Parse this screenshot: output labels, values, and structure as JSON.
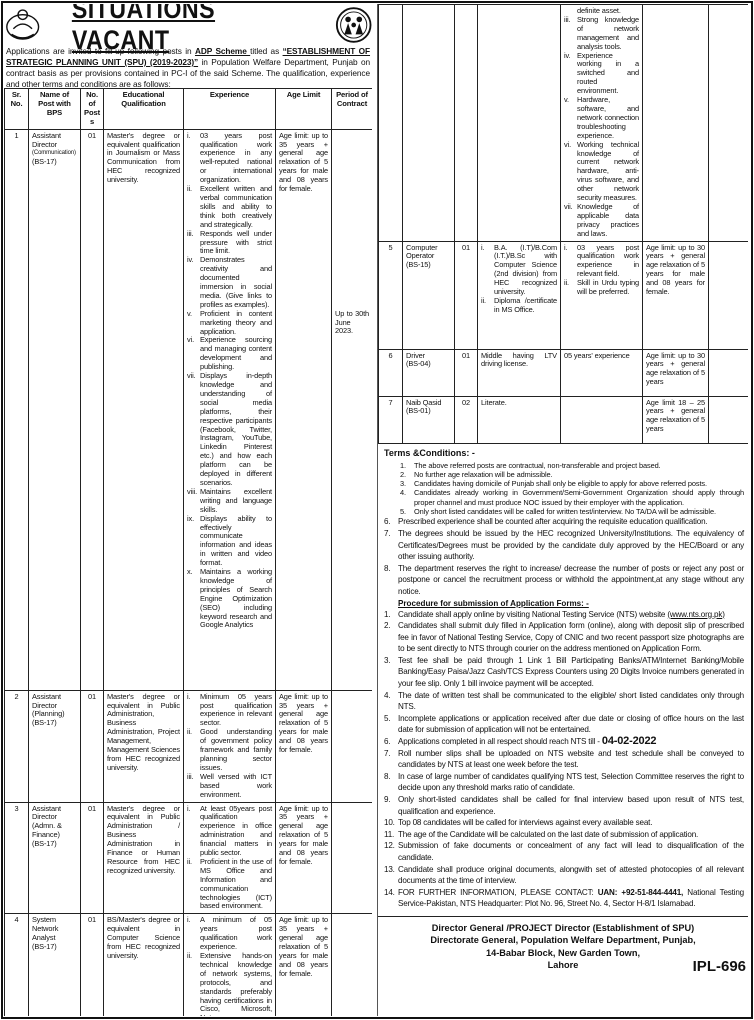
{
  "title": "SITUATIONS VACANT",
  "intro": {
    "p1": "Applications are invited to fill-up following posts in ",
    "b1": "ADP Scheme ",
    "p2": "titled as ",
    "b2": "“ESTABLISHMENT OF STRATEGIC PLANNING UNIT (SPU) (2019-2023)”",
    "p3": " in Population Welfare Department, Punjab on contract basis as per provisions contained in PC-I of the said Scheme. The qualification, experience and other terms and conditions are as follows:"
  },
  "table_headers": [
    "Sr. No.",
    "Name of Post with BPS",
    "No. of Post s",
    "Educational Qualification",
    "Experience",
    "Age Limit",
    "Period of Contract"
  ],
  "left_rows": [
    {
      "sr": "1",
      "name": "Assistant Director",
      "name_small": "(Communication)",
      "bps": "(BS-17)",
      "posts": "01",
      "edu": "Master's degree or equivalent qualification in Journalism or Mass Communication from HEC recognized university.",
      "exp": [
        {
          "n": "i.",
          "t": "03 years post qualification work experience in any well-reputed national or international organization."
        },
        {
          "n": "ii.",
          "t": "Excellent written and verbal communication skills and ability to think both creatively and strategically."
        },
        {
          "n": "iii.",
          "t": "Responds well under pressure with strict time limit."
        },
        {
          "n": "iv.",
          "t": "Demonstrates creativity and documented immersion in social media. (Give links to profiles as examples)."
        },
        {
          "n": "v.",
          "t": "Proficient in content marketing theory and application."
        },
        {
          "n": "vi.",
          "t": "Experience sourcing and managing content development and publishing."
        },
        {
          "n": "vii.",
          "t": "Displays in-depth knowledge and understanding of social media platforms, their respective participants (Facebook, Twitter, Instagram, YouTube, Linkedin Pinterest etc.) and how each platform can be deployed in different scenarios."
        },
        {
          "n": "viii.",
          "t": "Maintains excellent writing and language skills."
        },
        {
          "n": "ix.",
          "t": "Displays ability to effectively communicate information and ideas in written and video format."
        },
        {
          "n": "x.",
          "t": "Maintains a working knowledge of principles of Search Engine Optimization (SEO) including keyword research and Google Analytics"
        }
      ],
      "age": "Age limit: up to 35 years + general age relaxation of 5 years for male and 08 years for female.",
      "period": "Up to 30th June 2023."
    },
    {
      "sr": "2",
      "name": "Assistant Director (Planning)",
      "bps": "(BS-17)",
      "posts": "01",
      "edu": "Master's degree or equivalent in Public Administration, Business Administration, Project Management, Management Sciences from HEC recognized university.",
      "exp": [
        {
          "n": "i.",
          "t": "Minimum 05 years post qualification experience in relevant sector."
        },
        {
          "n": "ii.",
          "t": "Good understanding of government policy framework and family planning sector issues."
        },
        {
          "n": "iii.",
          "t": "Well versed with ICT based work environment."
        }
      ],
      "age": "Age limit: up to 35 years + general age relaxation of 5 years for male and 08 years for female."
    },
    {
      "sr": "3",
      "name": "Assistant Director (Admn. & Finance)",
      "bps": "(BS-17)",
      "posts": "01",
      "edu": "Master's degree or equivalent in Public Administration / Business Administration in Finance or Human Resource from HEC recognized university.",
      "exp": [
        {
          "n": "i.",
          "t": "At least 05years post qualification experience in office administration and financial matters in public sector."
        },
        {
          "n": "ii.",
          "t": "Proficient in the use of MS Office and Information and communication technologies (ICT) based environment."
        }
      ],
      "age": "Age limit: up to 35 years + general age relaxation of 5 years for male and 08 years for female."
    },
    {
      "sr": "4",
      "name": "System Network Analyst",
      "bps": "(BS-17)",
      "posts": "01",
      "edu": "BS/Master's degree or equivalent in Computer Science from HEC recognized university.",
      "exp": [
        {
          "n": "i.",
          "t": "A minimum of 05 years post qualification work experience."
        },
        {
          "n": "ii.",
          "t": "Extensive hands-on technical knowledge of network systems, protocols, and standards preferably having certifications in Cisco, Microsoft, Netware are a"
        }
      ],
      "age": "Age limit: up to 35 years + general age relaxation of 5 years for male and 08 years for female."
    }
  ],
  "right_rows": [
    {
      "sr": "",
      "name": "",
      "bps": "",
      "posts": "",
      "edu": "",
      "exp": [
        {
          "n": "",
          "t": "definite asset."
        },
        {
          "n": "iii.",
          "t": "Strong knowledge of network management and analysis tools."
        },
        {
          "n": "iv.",
          "t": "Experience working in a switched and routed environment."
        },
        {
          "n": "v.",
          "t": "Hardware, software, and network connection troubleshooting experience."
        },
        {
          "n": "vi.",
          "t": "Working technical knowledge of current network hardware, anti-virus software, and other network security measures."
        },
        {
          "n": "vii.",
          "t": "Knowledge of applicable data privacy practices and laws."
        }
      ],
      "age": ""
    },
    {
      "sr": "5",
      "name": "Computer Operator",
      "bps": "(BS-15)",
      "posts": "01",
      "edu_items": [
        {
          "n": "i.",
          "t": "B.A. (I.T)/B.Com (I.T.)/B.Sc with Computer Science (2nd division) from HEC recognized university."
        },
        {
          "n": "ii.",
          "t": "Diploma /certificate in MS Office."
        }
      ],
      "exp": [
        {
          "n": "i.",
          "t": "03 years post qualification work experience in relevant field."
        },
        {
          "n": "ii.",
          "t": "Skill in Urdu typing will be preferred."
        }
      ],
      "age": "Age limit: up to 30 years + general age relaxation of 5 years for male and 08 years for female."
    },
    {
      "sr": "6",
      "name": "Driver",
      "bps": "(BS-04)",
      "posts": "01",
      "edu": "Middle having LTV driving license.",
      "exp_text": "05 years' experience",
      "age": "Age limit: up to 30 years + general age relaxation of 5 years"
    },
    {
      "sr": "7",
      "name": "Naib Qasid",
      "bps": "(BS-01)",
      "posts": "02",
      "edu": "Literate.",
      "exp_text": "",
      "age": "Age limit 18 – 25 years + general age relaxation of 5 years"
    }
  ],
  "terms": {
    "heading": "Terms &Conditions: -",
    "sub": [
      {
        "n": "1.",
        "t": "The above referred posts are contractual, non-transferable and project based."
      },
      {
        "n": "2.",
        "t": "No further age relaxation will be admissible."
      },
      {
        "n": "3.",
        "t": "Candidates having domicile of Punjab shall only be eligible to apply for above referred posts."
      },
      {
        "n": "4.",
        "t": "Candidates already working in Government/Semi-Government Organization should apply through proper channel and must produce NOC issued by their employer with the application."
      },
      {
        "n": "5.",
        "t": "Only short listed candidates will be called for written test/interview. No TA/DA will be admissible."
      }
    ],
    "main": [
      {
        "n": "6.",
        "t": "Prescribed experience shall be counted after acquiring the requisite education qualification."
      },
      {
        "n": "7.",
        "t": "The degrees should be issued by the HEC recognized University/Institutions. The equivalency of Certificates/Degrees must be provided by the candidate duly approved by the HEC/Board or any other issuing authority."
      },
      {
        "n": "8.",
        "t": "The department reserves the right to increase/ decrease the number of posts or reject any post or postpone or cancel the recruitment process or withhold the appointment,at any stage without any notice."
      }
    ],
    "procedure_heading": "Procedure for submission of Application Forms: -",
    "procedure": [
      {
        "n": "1.",
        "t": "Candidate shall apply online by visiting National Testing Service (NTS) website ",
        "link": "(www.nts.org.pk)"
      },
      {
        "n": "2.",
        "t": "Candidates shall submit duly filled in Application form (online), along with deposit slip of prescribed fee in favor of National Testing Service, Copy of CNIC and two recent passport size photographs are to be sent directly to NTS through courier on the address mentioned on Application Form."
      },
      {
        "n": "3.",
        "t": "Test fee shall be paid through 1 Link 1 Bill Participating Banks/ATM/Internet Banking/Mobile Banking/Easy Paisa/Jazz Cash/TCS Express Counters using 20 Digits Invoice numbers generated in your fee slip. Only 1 bill invoice payment will be accepted."
      },
      {
        "n": "4.",
        "t": "The date of written test shall be communicated to the eligible/ short listed candidates only through NTS."
      },
      {
        "n": "5.",
        "t": "Incomplete applications or application received after due date or closing of office hours on the last date for submission of application will not be entertained."
      },
      {
        "n": "6.",
        "t": "Applications completed in all respect should reach NTS till - ",
        "big": "04-02-2022"
      },
      {
        "n": "7.",
        "t": "Roll number slips shall be uploaded on NTS website and test schedule shall be conveyed to candidates by NTS at least one week before the test."
      },
      {
        "n": "8.",
        "t": "In case of large number of candidates qualifying NTS test, Selection Committee reserves the right to decide upon any threshold marks ratio of candidate."
      },
      {
        "n": "9.",
        "t": "Only short-listed candidates shall be called for final interview based upon result of NTS test, qualification and experience."
      },
      {
        "n": "10.",
        "t": "Top 08 candidates will be called for interviews against every available seat."
      },
      {
        "n": "11.",
        "t": "The age of the Candidate will be calculated on the last date of submission of application."
      },
      {
        "n": "12.",
        "t": "Submission of fake documents or concealment of any fact will lead to disqualification of the candidate."
      },
      {
        "n": "13.",
        "t": "Candidate shall produce original documents, alongwith set of attested photocopies of all relevant documents at the time of interview."
      },
      {
        "n": "14.",
        "t": "FOR FURTHER INFORMATION, PLEASE CONTACT: ",
        "bold": "UAN: +92-51-844-4441,",
        "after": " National Testing Service-Pakistan, NTS Headquarter: Plot No. 96, Street No. 4, Sector H-8/1 Islamabad."
      }
    ]
  },
  "footer": {
    "lines": [
      "Director General /PROJECT Director (Establishment of SPU)",
      "Directorate General, Population Welfare Department, Punjab,",
      "14-Babar Block, New Garden Town,",
      "Lahore"
    ],
    "code": "IPL-696"
  },
  "icons": {
    "left_logo": "government-of-punjab-emblem",
    "right_logo": "population-welfare-department-logo"
  }
}
